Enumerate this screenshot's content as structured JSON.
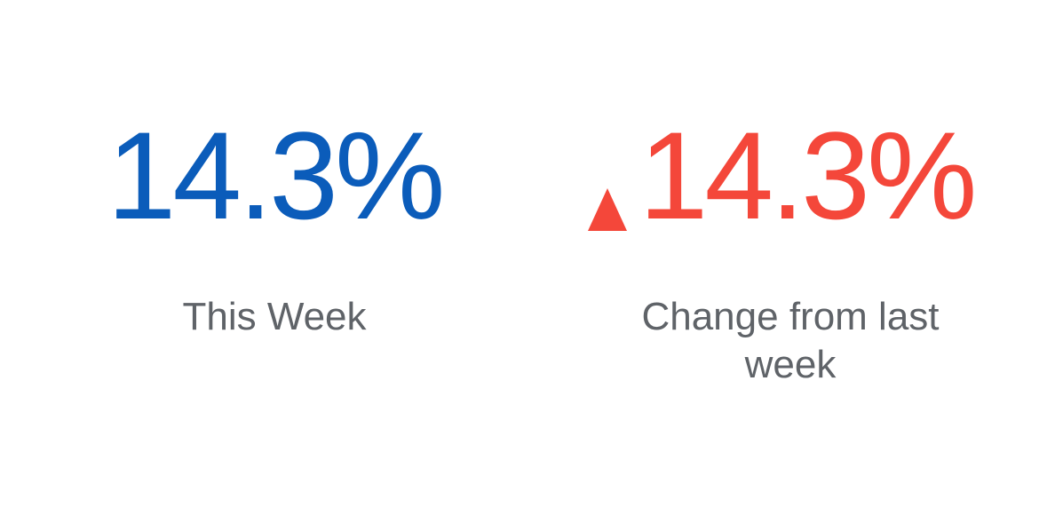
{
  "colors": {
    "this_week": "#0b5cba",
    "change": "#f4473a",
    "label": "#5f6368"
  },
  "this_week": {
    "value": "14.3%",
    "label": "This Week"
  },
  "change": {
    "direction_icon": "up-triangle-icon",
    "value": "14.3%",
    "label": "Change from last week"
  }
}
